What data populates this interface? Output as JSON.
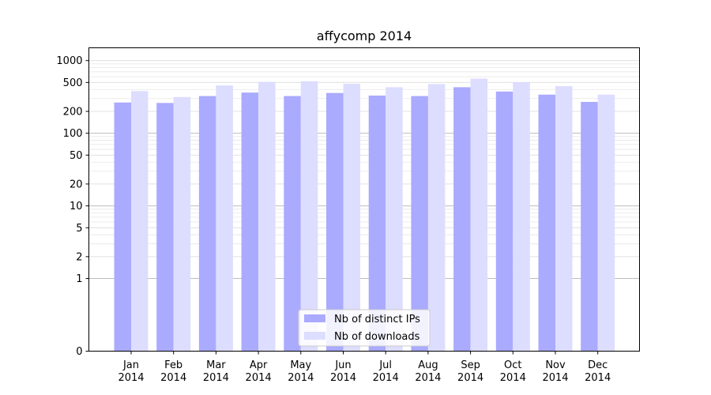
{
  "chart_data": {
    "type": "bar",
    "title": "affycomp 2014",
    "xlabel": "",
    "ylabel": "",
    "y_scale": "symlog",
    "ylim": [
      0,
      1500
    ],
    "grid": true,
    "legend_placement": "lower-center",
    "y_ticks": [
      0,
      1,
      2,
      5,
      10,
      20,
      50,
      100,
      200,
      500,
      1000
    ],
    "y_tick_labels": [
      "0",
      "1",
      "2",
      "5",
      "10",
      "20",
      "50",
      "100",
      "200",
      "500",
      "1000"
    ],
    "categories": [
      "Jan",
      "Feb",
      "Mar",
      "Apr",
      "May",
      "Jun",
      "Jul",
      "Aug",
      "Sep",
      "Oct",
      "Nov",
      "Dec"
    ],
    "category_years": [
      "2014",
      "2014",
      "2014",
      "2014",
      "2014",
      "2014",
      "2014",
      "2014",
      "2014",
      "2014",
      "2014",
      "2014"
    ],
    "series": [
      {
        "name": "Nb of distinct IPs",
        "color": "#aaaaff",
        "values": [
          265,
          261,
          325,
          363,
          325,
          358,
          330,
          325,
          430,
          375,
          340,
          270
        ]
      },
      {
        "name": "Nb of downloads",
        "color": "#ddddff",
        "values": [
          380,
          315,
          455,
          510,
          520,
          480,
          430,
          475,
          565,
          505,
          445,
          340
        ]
      }
    ]
  }
}
